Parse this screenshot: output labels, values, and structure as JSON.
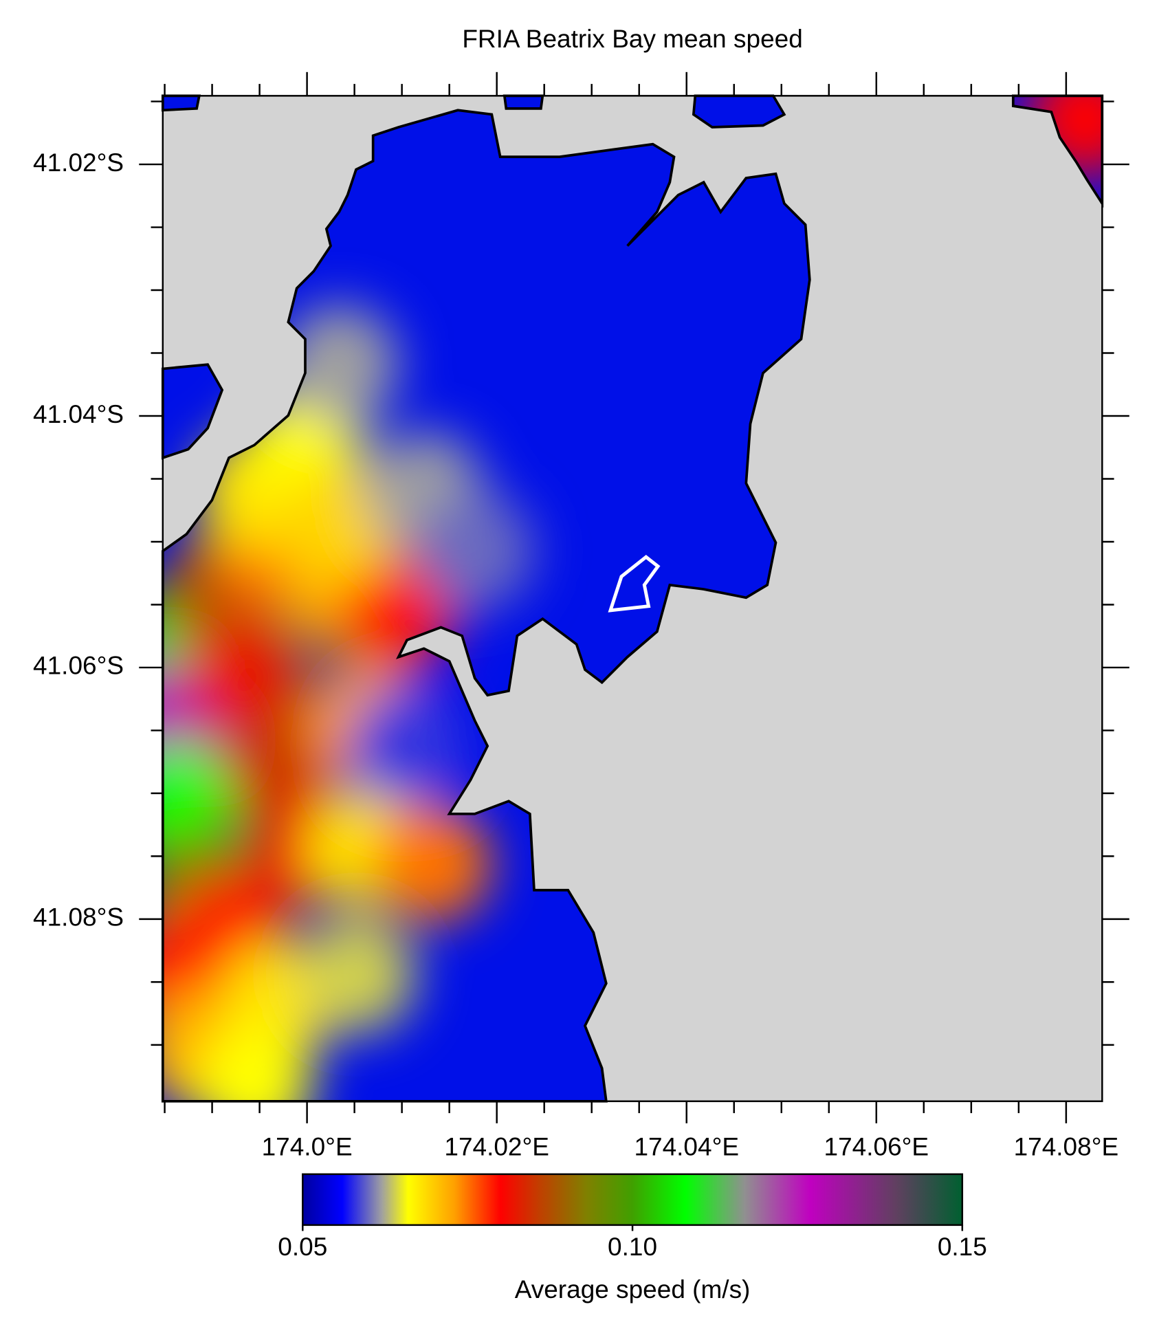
{
  "chart_data": {
    "type": "heatmap",
    "title": "FRIA Beatrix Bay mean speed",
    "colorbar_label": "Average speed (m/s)",
    "xlim": [
      173.9848,
      174.0838
    ],
    "ylim": [
      -41.01455,
      -41.09448
    ],
    "xticks": [
      {
        "value": 174.0,
        "label": "174.0°E"
      },
      {
        "value": 174.02,
        "label": "174.02°E"
      },
      {
        "value": 174.04,
        "label": "174.04°E"
      },
      {
        "value": 174.06,
        "label": "174.06°E"
      },
      {
        "value": 174.08,
        "label": "174.08°E"
      }
    ],
    "yticks": [
      {
        "value": -41.02,
        "label": "41.02°S"
      },
      {
        "value": -41.04,
        "label": "41.04°S"
      },
      {
        "value": -41.06,
        "label": "41.06°S"
      },
      {
        "value": -41.08,
        "label": "41.08°S"
      }
    ],
    "xminorticks": [
      173.985,
      173.99,
      173.995,
      174.005,
      174.01,
      174.015,
      174.025,
      174.03,
      174.035,
      174.045,
      174.05,
      174.055,
      174.065,
      174.07,
      174.075
    ],
    "yminorticks": [
      -41.015,
      -41.025,
      -41.03,
      -41.035,
      -41.045,
      -41.05,
      -41.055,
      -41.065,
      -41.07,
      -41.075,
      -41.085,
      -41.09
    ],
    "clim": [
      0.05,
      0.15
    ],
    "cticks": [
      {
        "value": 0.05,
        "label": "0.05"
      },
      {
        "value": 0.1,
        "label": "0.10"
      },
      {
        "value": 0.15,
        "label": "0.15"
      }
    ],
    "colormap": [
      [
        0.05,
        "#0000a0"
      ],
      [
        0.056,
        "#0000ff"
      ],
      [
        0.062,
        "#a0a0a0"
      ],
      [
        0.066,
        "#ffff00"
      ],
      [
        0.073,
        "#ffa000"
      ],
      [
        0.08,
        "#ff0000"
      ],
      [
        0.086,
        "#c04000"
      ],
      [
        0.093,
        "#808000"
      ],
      [
        0.1,
        "#40a000"
      ],
      [
        0.108,
        "#00ff00"
      ],
      [
        0.117,
        "#909090"
      ],
      [
        0.127,
        "#c000c0"
      ],
      [
        0.14,
        "#604060"
      ],
      [
        0.15,
        "#006030"
      ]
    ],
    "land_color": "#d3d3d3",
    "speed_samples": {
      "lon": [
        173.9864,
        173.9855,
        173.9864,
        173.9882,
        173.9909,
        173.9936,
        173.9971,
        173.9998,
        173.9918,
        173.9864,
        173.9882,
        173.9962,
        174.0034,
        174.0061,
        174.0096,
        173.9944,
        173.9998,
        174.0061,
        174.0132,
        173.9971,
        174.0052,
        174.0034,
        174.0123,
        174.0105,
        174.0177,
        174.0034,
        173.9944,
        174.082
      ],
      "lat": [
        -41.0581,
        -41.0642,
        -41.0709,
        -41.0776,
        -41.0541,
        -41.0608,
        -41.0675,
        -41.0743,
        -41.081,
        -41.0844,
        -41.0904,
        -41.0507,
        -41.0541,
        -41.0642,
        -41.0554,
        -41.046,
        -41.042,
        -41.0743,
        -41.0756,
        -41.0864,
        -41.0844,
        -41.0487,
        -41.046,
        -41.0662,
        -41.0507,
        -41.0359,
        -41.0931,
        -41.0164
      ],
      "speed": [
        0.105,
        0.125,
        0.108,
        0.095,
        0.088,
        0.082,
        0.085,
        0.082,
        0.08,
        0.079,
        0.072,
        0.075,
        0.072,
        0.073,
        0.08,
        0.068,
        0.066,
        0.068,
        0.075,
        0.068,
        0.064,
        0.069,
        0.062,
        0.058,
        0.06,
        0.062,
        0.066,
        0.08
      ]
    }
  }
}
